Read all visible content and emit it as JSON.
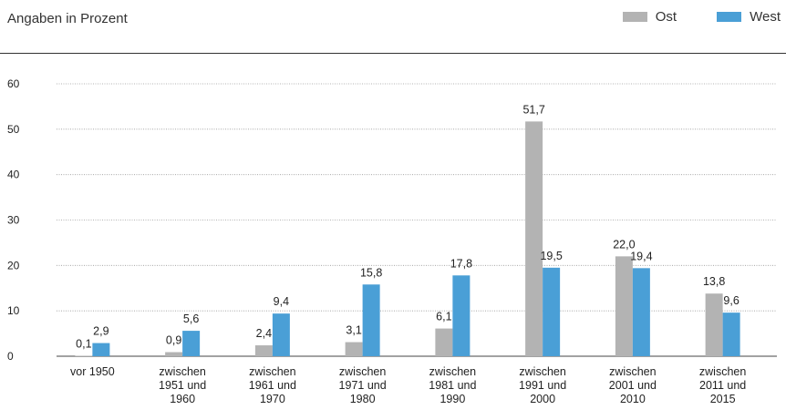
{
  "subtitle": "Angaben in Prozent",
  "legend": [
    {
      "label": "Ost",
      "color": "#b3b3b3"
    },
    {
      "label": "West",
      "color": "#4a9fd6"
    }
  ],
  "chart_data": {
    "type": "bar",
    "title": "",
    "subtitle": "Angaben in Prozent",
    "xlabel": "",
    "ylabel": "",
    "ylim": [
      0,
      60
    ],
    "yticks": [
      0,
      10,
      20,
      30,
      40,
      50,
      60
    ],
    "grid": true,
    "legend_position": "top-right",
    "categories": [
      [
        "vor 1950"
      ],
      [
        "zwischen",
        "1951 und",
        "1960"
      ],
      [
        "zwischen",
        "1961 und",
        "1970"
      ],
      [
        "zwischen",
        "1971 und",
        "1980"
      ],
      [
        "zwischen",
        "1981 und",
        "1990"
      ],
      [
        "zwischen",
        "1991 und",
        "2000"
      ],
      [
        "zwischen",
        "2001 und",
        "2010"
      ],
      [
        "zwischen",
        "2011 und",
        "2015"
      ]
    ],
    "series": [
      {
        "name": "Ost",
        "color": "#b3b3b3",
        "values": [
          0.1,
          0.9,
          2.4,
          3.1,
          6.1,
          51.7,
          22.0,
          13.8
        ],
        "labels": [
          "0,1",
          "0,9",
          "2,4",
          "3,1",
          "6,1",
          "51,7",
          "22,0",
          "13,8"
        ]
      },
      {
        "name": "West",
        "color": "#4a9fd6",
        "values": [
          2.9,
          5.6,
          9.4,
          15.8,
          17.8,
          19.5,
          19.4,
          9.6
        ],
        "labels": [
          "2,9",
          "5,6",
          "9,4",
          "15,8",
          "17,8",
          "19,5",
          "19,4",
          "9,6"
        ]
      }
    ]
  }
}
